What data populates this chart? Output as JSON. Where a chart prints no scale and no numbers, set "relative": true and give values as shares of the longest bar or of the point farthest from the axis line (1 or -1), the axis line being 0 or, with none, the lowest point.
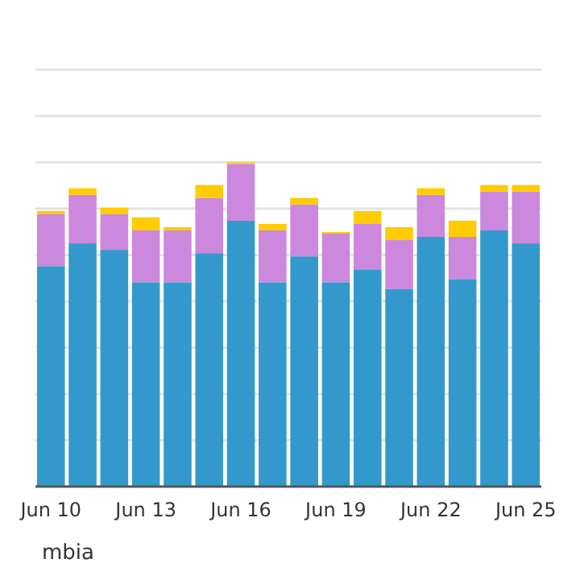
{
  "chart_data": {
    "type": "bar",
    "stacked": true,
    "relative": true,
    "grid": "y",
    "categories": [
      "Jun 10",
      null,
      null,
      "Jun 13",
      null,
      null,
      "Jun 16",
      null,
      null,
      "Jun 19",
      null,
      null,
      "Jun 22",
      null,
      null,
      "Jun 25"
    ],
    "series": [
      {
        "color": "#3399cc",
        "values": [
          0.68,
          0.75,
          0.73,
          0.63,
          0.63,
          0.72,
          0.82,
          0.63,
          0.71,
          0.63,
          0.67,
          0.61,
          0.77,
          0.64,
          0.79,
          0.75
        ]
      },
      {
        "color": "#cc88dd",
        "values": [
          0.16,
          0.15,
          0.11,
          0.16,
          0.16,
          0.17,
          0.175,
          0.16,
          0.16,
          0.15,
          0.14,
          0.15,
          0.13,
          0.13,
          0.12,
          0.16
        ]
      },
      {
        "color": "#ffcc00",
        "values": [
          0.01,
          0.02,
          0.02,
          0.04,
          0.01,
          0.04,
          0.005,
          0.02,
          0.02,
          0.005,
          0.04,
          0.04,
          0.02,
          0.05,
          0.02,
          0.02
        ]
      }
    ],
    "annotations": [
      "mbia"
    ]
  }
}
